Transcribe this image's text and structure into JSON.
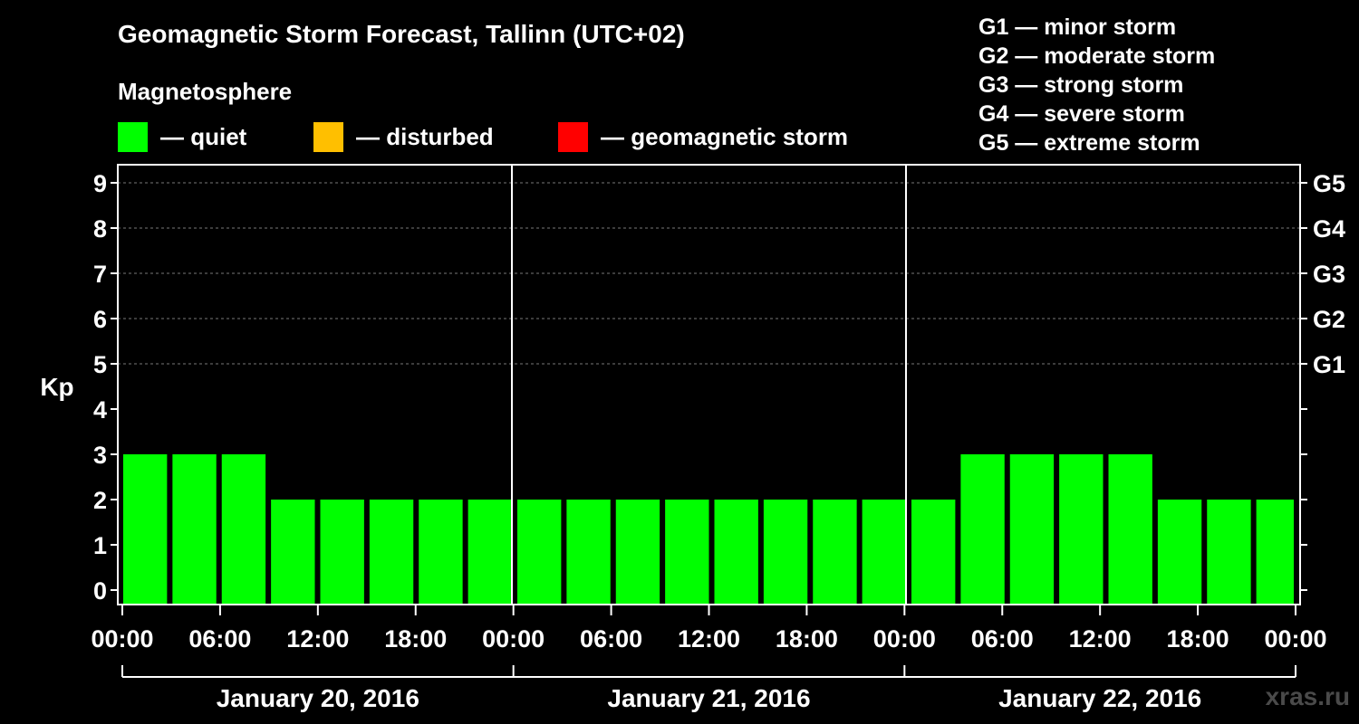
{
  "title": "Geomagnetic Storm Forecast, Tallinn (UTC+02)",
  "magnetosphere": {
    "label": "Magnetosphere",
    "items": [
      {
        "label": "— quiet",
        "color": "#00ff00"
      },
      {
        "label": "— disturbed",
        "color": "#ffbf00"
      },
      {
        "label": "— geomagnetic storm",
        "color": "#ff0000"
      }
    ]
  },
  "storm_scale": [
    "G1 — minor storm",
    "G2 — moderate storm",
    "G3 — strong storm",
    "G4 — severe storm",
    "G5 — extreme storm"
  ],
  "watermark": "xras.ru",
  "chart_data": {
    "type": "bar",
    "ylabel": "Kp",
    "ylim": [
      0,
      9
    ],
    "yticks": [
      0,
      1,
      2,
      3,
      4,
      5,
      6,
      7,
      8,
      9
    ],
    "right_axis_labels": [
      {
        "kp": 5,
        "label": "G1"
      },
      {
        "kp": 6,
        "label": "G2"
      },
      {
        "kp": 7,
        "label": "G3"
      },
      {
        "kp": 8,
        "label": "G4"
      },
      {
        "kp": 9,
        "label": "G5"
      }
    ],
    "grid": "horizontal dashed at Kp 5–9",
    "xtick_labels": [
      "00:00",
      "06:00",
      "12:00",
      "18:00",
      "00:00",
      "06:00",
      "12:00",
      "18:00",
      "00:00",
      "06:00",
      "12:00",
      "18:00",
      "00:00"
    ],
    "days": [
      "January 20, 2016",
      "January 21, 2016",
      "January 22, 2016"
    ],
    "interval_hours": 3,
    "values": [
      3,
      3,
      3,
      2,
      2,
      2,
      2,
      2,
      2,
      2,
      2,
      2,
      2,
      2,
      2,
      2,
      2,
      3,
      3,
      3,
      3,
      2,
      2,
      2
    ],
    "bar_color": "#00ff00"
  }
}
